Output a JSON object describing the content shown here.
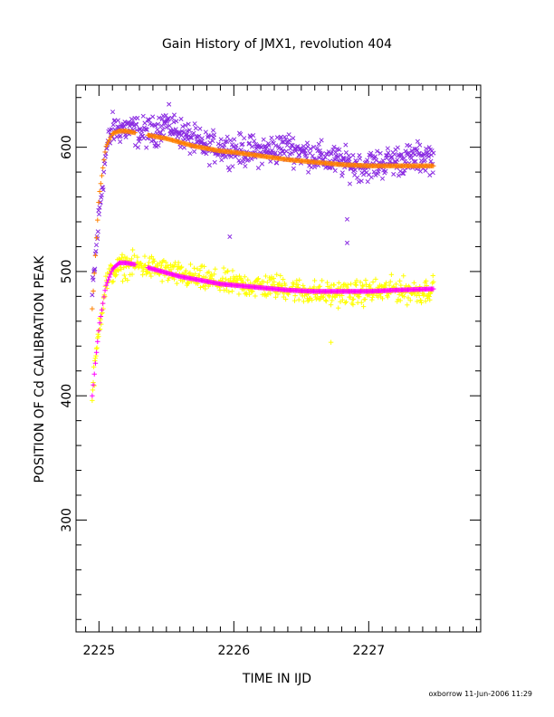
{
  "chart_data": {
    "type": "scatter",
    "title": "Gain History of JMX1, revolution 404",
    "xlabel": "TIME IN IJD",
    "ylabel": "POSITION OF Cd CALIBRATION PEAK",
    "xlim": [
      2224.83,
      2227.83
    ],
    "ylim": [
      210,
      650
    ],
    "xticks": [
      2225,
      2226,
      2227
    ],
    "yticks": [
      300,
      400,
      500,
      600
    ],
    "grid": false,
    "footer": "oxborrow 11-Jun-2006 11:29",
    "series": [
      {
        "marker": "x",
        "color": "#8a2be2",
        "kind": "scatter",
        "x": [
          2224.95,
          2225.0,
          2225.05,
          2225.1,
          2225.2,
          2225.3,
          2225.4,
          2225.5,
          2225.6,
          2225.7,
          2225.8,
          2225.9,
          2226.0,
          2226.1,
          2226.2,
          2226.3,
          2226.4,
          2226.5,
          2226.6,
          2226.7,
          2226.8,
          2226.9,
          2227.0,
          2227.1,
          2227.2,
          2227.3,
          2227.4,
          2227.48
        ],
        "y": [
          480,
          545,
          595,
          615,
          615,
          612,
          612,
          620,
          612,
          605,
          600,
          600,
          598,
          597,
          597,
          598,
          600,
          596,
          593,
          590,
          588,
          585,
          585,
          587,
          590,
          590,
          592,
          592
        ],
        "spread": 10
      },
      {
        "marker": "+",
        "color": "#ff8000",
        "kind": "band",
        "x": [
          2224.95,
          2225.0,
          2225.05,
          2225.1,
          2225.15,
          2225.2,
          2225.3,
          2225.4,
          2225.5,
          2225.6,
          2225.7,
          2225.8,
          2225.9,
          2226.0,
          2226.2,
          2226.4,
          2226.6,
          2226.8,
          2227.0,
          2227.2,
          2227.48
        ],
        "y": [
          470,
          560,
          600,
          611,
          613,
          613,
          611,
          609,
          607,
          604,
          601,
          599,
          597,
          596,
          593,
          590,
          588,
          586,
          585,
          585,
          585
        ]
      },
      {
        "marker": "+",
        "color": "#ffff00",
        "kind": "scatter",
        "x": [
          2224.95,
          2225.0,
          2225.05,
          2225.1,
          2225.2,
          2225.3,
          2225.4,
          2225.5,
          2225.6,
          2225.7,
          2225.8,
          2225.9,
          2226.0,
          2226.1,
          2226.2,
          2226.3,
          2226.4,
          2226.5,
          2226.6,
          2226.7,
          2226.8,
          2226.9,
          2227.0,
          2227.1,
          2227.2,
          2227.3,
          2227.4,
          2227.48
        ],
        "y": [
          400,
          455,
          490,
          500,
          505,
          505,
          503,
          500,
          497,
          495,
          493,
          491,
          490,
          489,
          488,
          488,
          487,
          484,
          483,
          482,
          483,
          482,
          484,
          484,
          486,
          484,
          484,
          487
        ],
        "spread": 8
      },
      {
        "marker": "+",
        "color": "#ff00ff",
        "kind": "band",
        "x": [
          2224.95,
          2225.0,
          2225.05,
          2225.1,
          2225.15,
          2225.2,
          2225.3,
          2225.4,
          2225.5,
          2225.6,
          2225.7,
          2225.8,
          2225.9,
          2226.0,
          2226.2,
          2226.4,
          2226.6,
          2226.8,
          2227.0,
          2227.2,
          2227.48
        ],
        "y": [
          400,
          455,
          488,
          502,
          507,
          507,
          505,
          502,
          499,
          496,
          494,
          492,
          490,
          489,
          487,
          485,
          484,
          484,
          484,
          485,
          486
        ]
      }
    ],
    "outliers": [
      {
        "x": 2225.97,
        "y": 528,
        "color": "#8a2be2"
      },
      {
        "x": 2226.84,
        "y": 523,
        "color": "#8a2be2"
      },
      {
        "x": 2226.84,
        "y": 542,
        "color": "#8a2be2"
      },
      {
        "x": 2226.72,
        "y": 443,
        "color": "#ffff00"
      }
    ]
  }
}
